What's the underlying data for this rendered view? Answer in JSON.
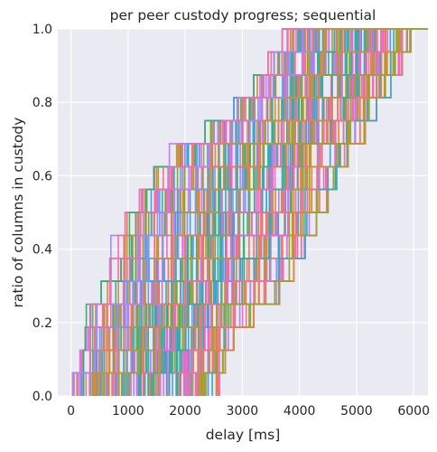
{
  "chart_data": {
    "type": "line",
    "step": true,
    "title": "per peer custody progress; sequential",
    "xlabel": "delay [ms]",
    "ylabel": "ratio of columns in custody",
    "xlim": [
      -230,
      6250
    ],
    "ylim": [
      0,
      1
    ],
    "xticks": [
      0,
      1000,
      2000,
      3000,
      4000,
      5000,
      6000
    ],
    "yticks": [
      0.0,
      0.2,
      0.4,
      0.6,
      0.8,
      1.0
    ],
    "xtick_labels": [
      "0",
      "1000",
      "2000",
      "3000",
      "4000",
      "5000",
      "6000"
    ],
    "ytick_labels": [
      "0.0",
      "0.2",
      "0.4",
      "0.6",
      "0.8",
      "1.0"
    ],
    "grid": true,
    "levels": 16,
    "series_count": 150,
    "palette": [
      "#f77189",
      "#f7754f",
      "#dc8932",
      "#c39532",
      "#ae9d31",
      "#97a431",
      "#77ab31",
      "#33b07a",
      "#35ad9c",
      "#36ada4",
      "#38a9c5",
      "#3ba3ec",
      "#6e9bf4",
      "#a48cf4",
      "#cc7af4",
      "#f45cf2",
      "#f565cc",
      "#f66bad"
    ],
    "envelope": {
      "y": [
        0.0625,
        0.125,
        0.1875,
        0.25,
        0.3125,
        0.375,
        0.4375,
        0.5,
        0.5625,
        0.625,
        0.6875,
        0.75,
        0.8125,
        0.875,
        0.9375,
        1.0
      ],
      "x_min": [
        30,
        160,
        250,
        270,
        530,
        680,
        700,
        950,
        1200,
        1450,
        1700,
        2350,
        2850,
        3200,
        3450,
        3700
      ],
      "x_max": [
        2600,
        2700,
        2850,
        3200,
        3650,
        3900,
        4100,
        4300,
        4500,
        4650,
        4850,
        5150,
        5350,
        5600,
        5800,
        5950
      ]
    }
  }
}
